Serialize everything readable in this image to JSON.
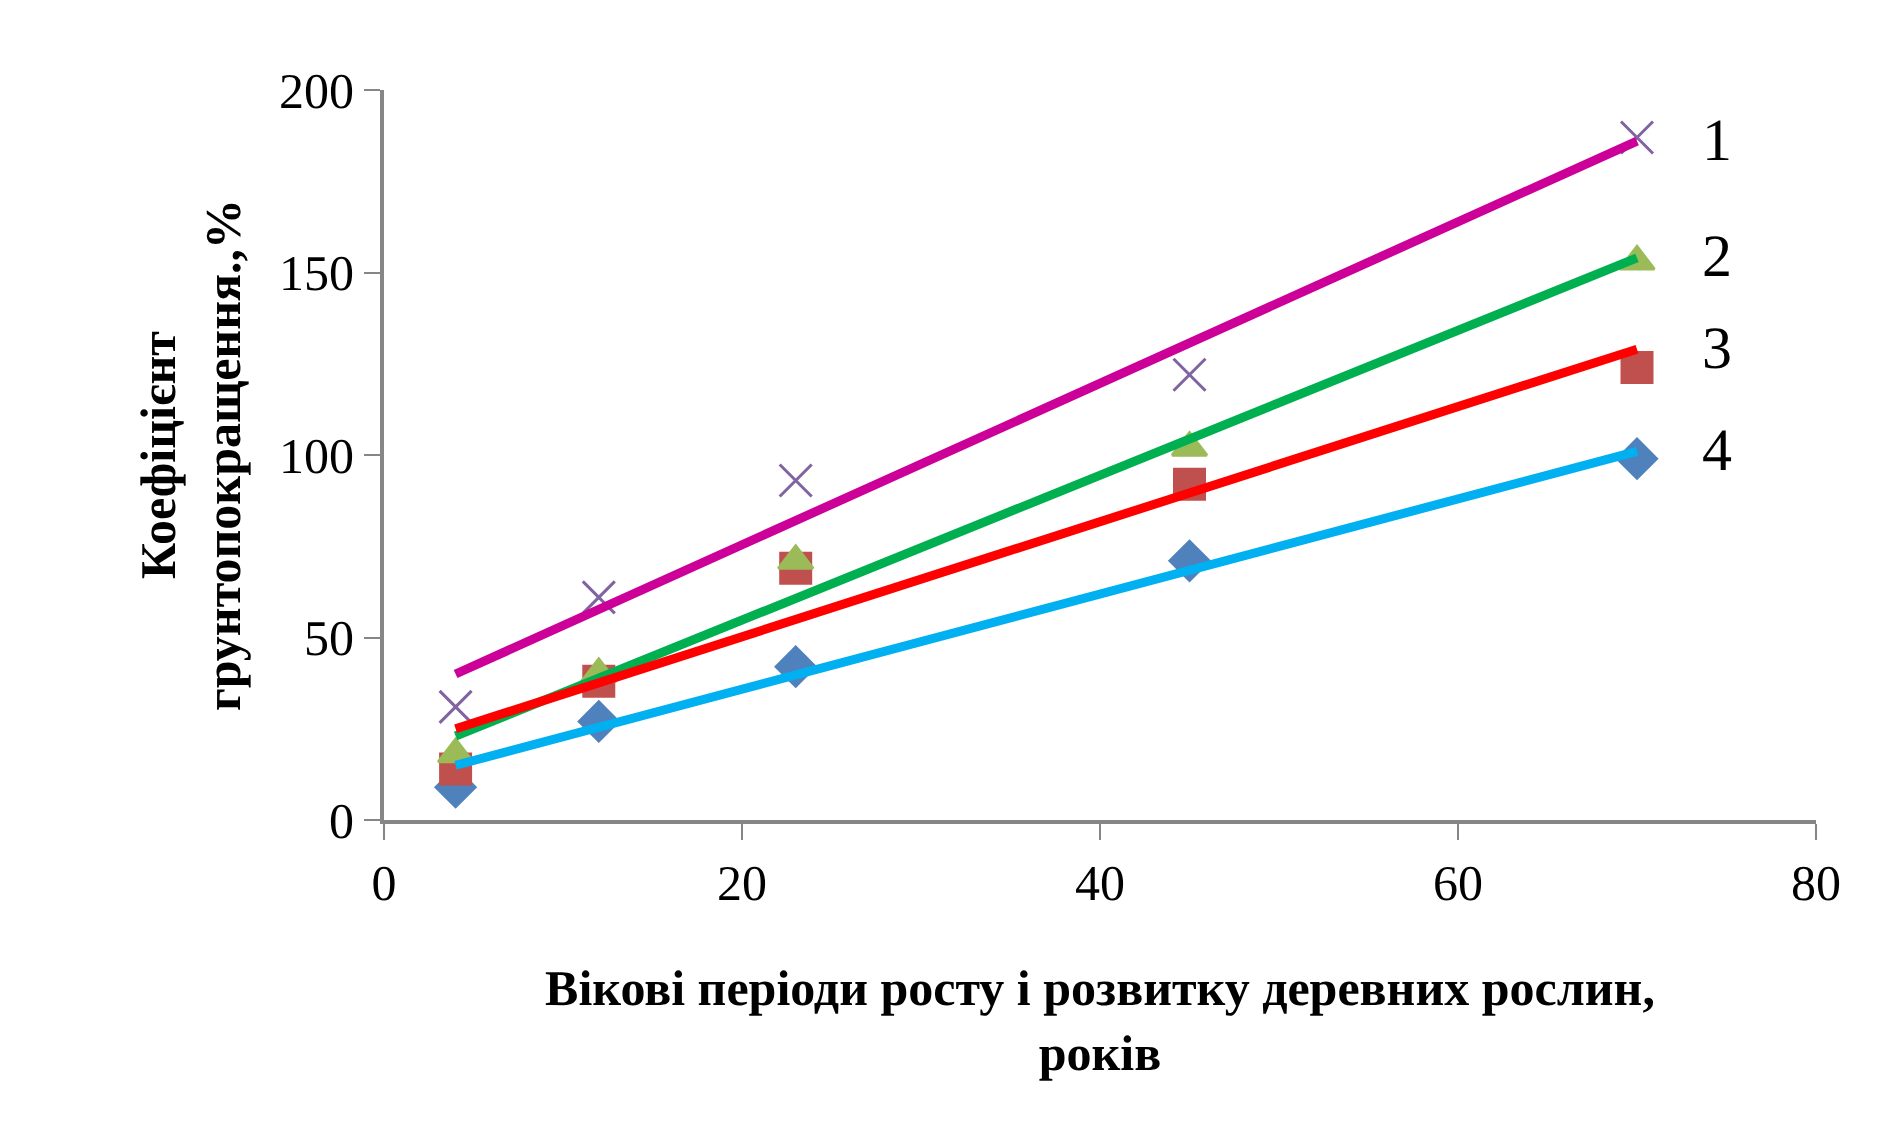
{
  "chart_data": {
    "type": "scatter",
    "xlabel": "Вікові періоди росту і розвитку деревних рослин,\nроків",
    "ylabel": "Коефіцієнт\nгрунтопокращення.,%",
    "xlim": [
      0,
      80
    ],
    "xticks": [
      0,
      20,
      40,
      60,
      80
    ],
    "ylim": [
      0,
      200
    ],
    "yticks": [
      0,
      50,
      100,
      150,
      200
    ],
    "grid": false,
    "series": [
      {
        "marker": "diamond",
        "color": "#4f81bd",
        "x": [
          4,
          12,
          23,
          45,
          70
        ],
        "values": [
          9,
          27,
          42,
          71,
          99
        ]
      },
      {
        "marker": "square",
        "color": "#c0504d",
        "x": [
          4,
          12,
          23,
          45,
          70
        ],
        "values": [
          14,
          38,
          69,
          92,
          124
        ]
      },
      {
        "marker": "triangle",
        "color": "#9bbb59",
        "x": [
          4,
          12,
          23,
          45,
          70
        ],
        "values": [
          18,
          40,
          71,
          102,
          153
        ]
      },
      {
        "marker": "cross",
        "color": "#8064a2",
        "x": [
          4,
          12,
          23,
          45,
          70
        ],
        "values": [
          31,
          61,
          93,
          122,
          187
        ]
      },
      {
        "type": "line",
        "name": "1",
        "color": "#cc0099",
        "x": [
          4,
          70
        ],
        "values": [
          40,
          186
        ]
      },
      {
        "type": "line",
        "name": "2",
        "color": "#00b050",
        "x": [
          4,
          70
        ],
        "values": [
          23,
          154
        ]
      },
      {
        "type": "line",
        "name": "3",
        "color": "#ff0000",
        "x": [
          4,
          70
        ],
        "values": [
          25,
          129
        ]
      },
      {
        "type": "line",
        "name": "4",
        "color": "#00b0f0",
        "x": [
          4,
          70
        ],
        "values": [
          15,
          101
        ]
      }
    ]
  }
}
